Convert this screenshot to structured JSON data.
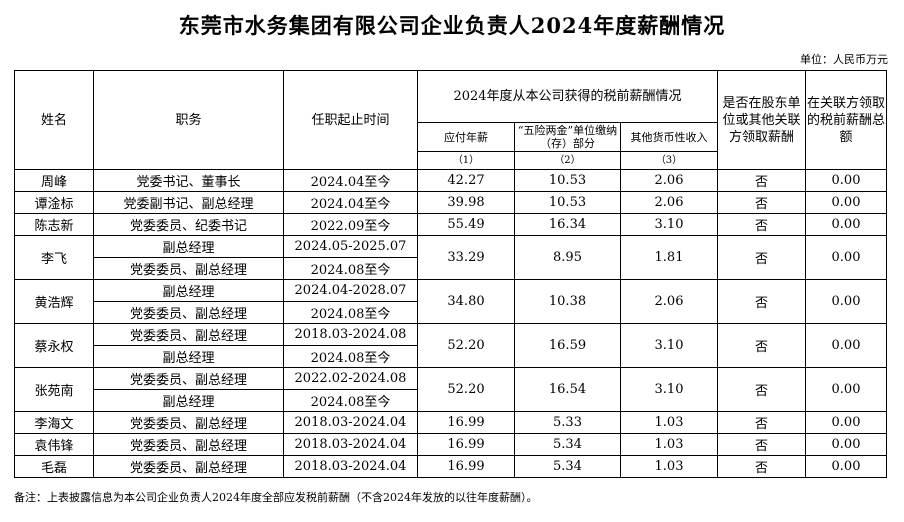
{
  "title": "东莞市水务集团有限公司企业负责人2024年度薪酬情况",
  "unit": "单位：人民币万元",
  "headers": {
    "name": "姓名",
    "position": "职务",
    "term": "任职起止时间",
    "group": "2024年度从本公司获得的税前薪酬情况",
    "payable": "应付年薪",
    "insurance": "“五险两金”单位缴纳（存）部分",
    "other": "其他货币性收入",
    "num1": "（1）",
    "num2": "（2）",
    "num3": "（3）",
    "shareholder": "是否在股东单位或其他关联方领取薪酬",
    "related": "在关联方领取的税前薪酬总额"
  },
  "rows": [
    {
      "name": "周峰",
      "positions": [
        "党委书记、董事长"
      ],
      "terms": [
        "2024.04至今"
      ],
      "payable": "42.27",
      "insurance": "10.53",
      "other": "2.06",
      "flag": "否",
      "related": "0.00"
    },
    {
      "name": "谭淦标",
      "positions": [
        "党委副书记、副总经理"
      ],
      "terms": [
        "2024.04至今"
      ],
      "payable": "39.98",
      "insurance": "10.53",
      "other": "2.06",
      "flag": "否",
      "related": "0.00"
    },
    {
      "name": "陈志新",
      "positions": [
        "党委委员、纪委书记"
      ],
      "terms": [
        "2022.09至今"
      ],
      "payable": "55.49",
      "insurance": "16.34",
      "other": "3.10",
      "flag": "否",
      "related": "0.00"
    },
    {
      "name": "李飞",
      "positions": [
        "副总经理",
        "党委委员、副总经理"
      ],
      "terms": [
        "2024.05-2025.07",
        "2024.08至今"
      ],
      "payable": "33.29",
      "insurance": "8.95",
      "other": "1.81",
      "flag": "否",
      "related": "0.00"
    },
    {
      "name": "黄浩辉",
      "positions": [
        "副总经理",
        "党委委员、副总经理"
      ],
      "terms": [
        "2024.04-2028.07",
        "2024.08至今"
      ],
      "payable": "34.80",
      "insurance": "10.38",
      "other": "2.06",
      "flag": "否",
      "related": "0.00"
    },
    {
      "name": "蔡永权",
      "positions": [
        "党委委员、副总经理",
        "副总经理"
      ],
      "terms": [
        "2018.03-2024.08",
        "2024.08至今"
      ],
      "payable": "52.20",
      "insurance": "16.59",
      "other": "3.10",
      "flag": "否",
      "related": "0.00"
    },
    {
      "name": "张苑南",
      "positions": [
        "党委委员、副总经理",
        "副总经理"
      ],
      "terms": [
        "2022.02-2024.08",
        "2024.08至今"
      ],
      "payable": "52.20",
      "insurance": "16.54",
      "other": "3.10",
      "flag": "否",
      "related": "0.00"
    },
    {
      "name": "李海文",
      "positions": [
        "党委委员、副总经理"
      ],
      "terms": [
        "2018.03-2024.04"
      ],
      "payable": "16.99",
      "insurance": "5.33",
      "other": "1.03",
      "flag": "否",
      "related": "0.00"
    },
    {
      "name": "袁伟锋",
      "positions": [
        "党委委员、副总经理"
      ],
      "terms": [
        "2018.03-2024.04"
      ],
      "payable": "16.99",
      "insurance": "5.34",
      "other": "1.03",
      "flag": "否",
      "related": "0.00"
    },
    {
      "name": "毛磊",
      "positions": [
        "党委委员、副总经理"
      ],
      "terms": [
        "2018.03-2024.04"
      ],
      "payable": "16.99",
      "insurance": "5.34",
      "other": "1.03",
      "flag": "否",
      "related": "0.00"
    }
  ],
  "note": "备注：上表披露信息为本公司企业负责人2024年度全部应发税前薪酬（不含2024年发放的以往年度薪酬）。"
}
